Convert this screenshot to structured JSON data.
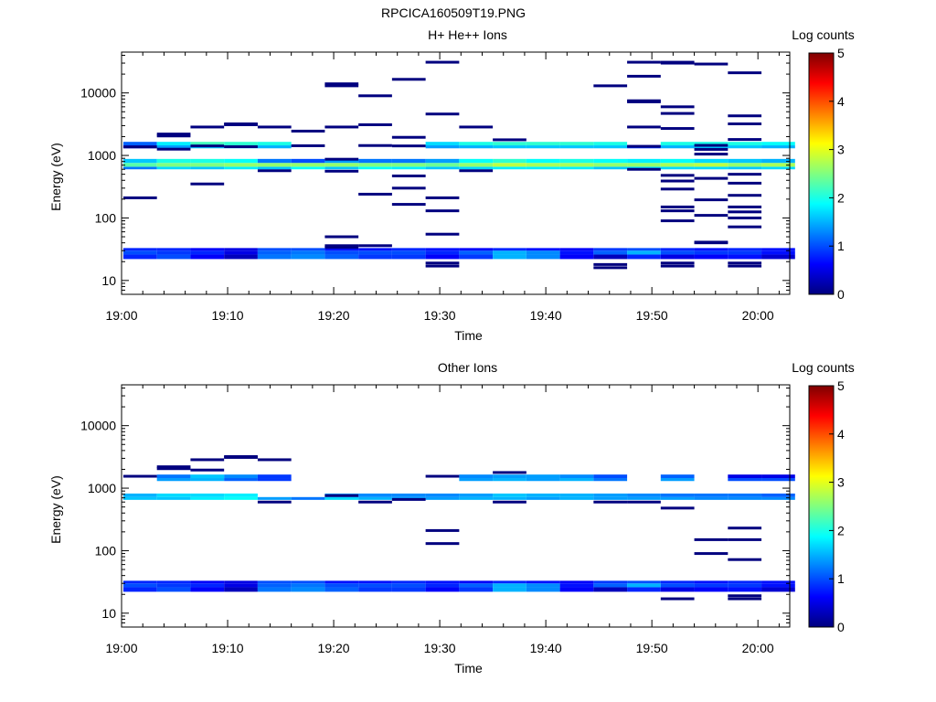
{
  "figure": {
    "main_title": "RPCICA160509T19.PNG"
  },
  "colormap": [
    "#00007f",
    "#0000ff",
    "#0080ff",
    "#00ffff",
    "#80ff80",
    "#ffff00",
    "#ff8000",
    "#ff0000",
    "#7f0000"
  ],
  "chart_data": [
    {
      "type": "heatmap",
      "title": "H+ He++ Ions",
      "xlabel": "Time",
      "ylabel": "Energy (eV)",
      "yscale": "log",
      "ylim": [
        6,
        45000
      ],
      "xlim_minutes": [
        0,
        63
      ],
      "x_ticks": [
        "19:00",
        "19:10",
        "19:20",
        "19:30",
        "19:40",
        "19:50",
        "20:00"
      ],
      "x_tick_minutes": [
        0,
        10,
        20,
        30,
        40,
        50,
        60
      ],
      "y_ticks": [
        "10",
        "100",
        "1000",
        "10000"
      ],
      "y_tick_values": [
        10,
        100,
        1000,
        10000
      ],
      "colorbar": {
        "label": "Log counts",
        "min": 0,
        "max": 5,
        "ticks": [
          "0",
          "1",
          "2",
          "3",
          "4",
          "5"
        ]
      },
      "time_columns": [
        [
          "19:00:10",
          "19:03:20"
        ],
        [
          "19:03:20",
          "19:06:30"
        ],
        [
          "19:06:30",
          "19:09:40"
        ],
        [
          "19:09:40",
          "19:12:50"
        ],
        [
          "19:12:50",
          "19:16:00"
        ],
        [
          "19:16:00",
          "19:19:10"
        ],
        [
          "19:19:10",
          "19:22:20"
        ],
        [
          "19:22:20",
          "19:25:30"
        ],
        [
          "19:25:30",
          "19:28:40"
        ],
        [
          "19:28:40",
          "19:31:50"
        ],
        [
          "19:31:50",
          "19:35:00"
        ],
        [
          "19:35:00",
          "19:38:10"
        ],
        [
          "19:38:10",
          "19:41:20"
        ],
        [
          "19:41:20",
          "19:44:30"
        ],
        [
          "19:44:30",
          "19:47:40"
        ],
        [
          "19:47:40",
          "19:50:50"
        ],
        [
          "19:50:50",
          "19:54:00"
        ],
        [
          "19:54:00",
          "19:57:10"
        ],
        [
          "19:57:10",
          "20:00:20"
        ],
        [
          "20:00:20",
          "20:03:30"
        ]
      ],
      "bands": [
        {
          "name": "main 600-650 eV",
          "e_low": 600,
          "e_high": 660,
          "values": [
            1.2,
            1.7,
            1.6,
            1.8,
            1.6,
            1.9,
            1.6,
            1.9,
            1.8,
            1.6,
            1.7,
            1.8,
            1.8,
            1.8,
            1.6,
            1.7,
            1.7,
            1.7,
            1.6,
            1.7
          ]
        },
        {
          "name": "main 660-760 eV",
          "e_low": 660,
          "e_high": 760,
          "values": [
            2.3,
            2.5,
            2.5,
            2.6,
            2.6,
            2.6,
            2.6,
            2.5,
            2.5,
            2.4,
            2.6,
            2.8,
            2.7,
            2.7,
            2.6,
            2.6,
            2.7,
            2.8,
            2.6,
            2.7
          ]
        },
        {
          "name": "main 760-880 eV",
          "e_low": 760,
          "e_high": 880,
          "values": [
            1.6,
            2.0,
            2.0,
            1.9,
            1.2,
            1.0,
            1.4,
            1.2,
            1.2,
            1.4,
            1.9,
            2.1,
            1.9,
            2.0,
            1.9,
            1.8,
            1.9,
            1.7,
            1.6,
            1.5
          ]
        },
        {
          "name": "1300-1450 eV",
          "e_low": 1300,
          "e_high": 1450,
          "values": [
            0.6,
            1.4,
            1.6,
            1.5,
            1.5,
            null,
            null,
            null,
            null,
            1.4,
            1.5,
            1.6,
            1.6,
            1.6,
            1.6,
            0.9,
            1.5,
            1.6,
            1.6,
            1.5
          ]
        },
        {
          "name": "1450-1650 eV",
          "e_low": 1450,
          "e_high": 1650,
          "values": [
            1.1,
            1.8,
            2.2,
            2.1,
            2.0,
            null,
            null,
            null,
            null,
            1.7,
            2.0,
            2.1,
            2.1,
            2.1,
            2.0,
            null,
            2.0,
            2.0,
            2.0,
            1.9
          ]
        },
        {
          "name": "low 22-26 eV",
          "e_low": 22,
          "e_high": 26,
          "values": [
            0.8,
            1.0,
            0.6,
            0.3,
            1.2,
            1.3,
            1.1,
            0.9,
            0.9,
            0.6,
            0.9,
            1.5,
            1.3,
            0.6,
            0.3,
            0.8,
            0.5,
            0.6,
            0.7,
            0.4
          ]
        },
        {
          "name": "low 26-30 eV",
          "e_low": 26,
          "e_high": 30,
          "values": [
            1.0,
            0.9,
            0.8,
            0.5,
            1.1,
            1.2,
            1.0,
            1.0,
            1.0,
            0.8,
            1.1,
            1.5,
            1.3,
            0.7,
            1.1,
            1.5,
            1.0,
            0.9,
            0.9,
            0.7
          ]
        },
        {
          "name": "low 30-33 eV",
          "e_low": 30,
          "e_high": 33,
          "values": [
            0.8,
            0.8,
            0.6,
            0.5,
            1.0,
            1.0,
            0.7,
            0.7,
            0.8,
            0.7,
            0.6,
            0.8,
            0.7,
            0.6,
            0.9,
            1.0,
            0.8,
            0.7,
            0.8,
            0.7
          ]
        }
      ],
      "sparse_points": [
        [
          0,
          210
        ],
        [
          0,
          1370
        ],
        [
          1,
          1260
        ],
        [
          1,
          2050
        ],
        [
          1,
          2200
        ],
        [
          2,
          350
        ],
        [
          2,
          2850
        ],
        [
          2,
          1420
        ],
        [
          3,
          3100
        ],
        [
          3,
          3200
        ],
        [
          3,
          1380
        ],
        [
          4,
          2850
        ],
        [
          4,
          570
        ],
        [
          5,
          1430
        ],
        [
          5,
          2450
        ],
        [
          6,
          870
        ],
        [
          6,
          13000
        ],
        [
          6,
          14000
        ],
        [
          6,
          2850
        ],
        [
          6,
          50
        ],
        [
          6,
          34
        ],
        [
          6,
          36
        ],
        [
          6,
          560
        ],
        [
          7,
          3100
        ],
        [
          7,
          9000
        ],
        [
          7,
          240
        ],
        [
          7,
          1440
        ],
        [
          7,
          36
        ],
        [
          8,
          470
        ],
        [
          8,
          300
        ],
        [
          8,
          165
        ],
        [
          8,
          16500
        ],
        [
          8,
          1950
        ],
        [
          8,
          1420
        ],
        [
          9,
          31000
        ],
        [
          9,
          4600
        ],
        [
          9,
          210
        ],
        [
          9,
          130
        ],
        [
          9,
          55
        ],
        [
          9,
          17
        ],
        [
          9,
          19
        ],
        [
          10,
          2850
        ],
        [
          10,
          570
        ],
        [
          11,
          1780
        ],
        [
          14,
          13000
        ],
        [
          14,
          16
        ],
        [
          14,
          18
        ],
        [
          15,
          31000
        ],
        [
          15,
          18500
        ],
        [
          15,
          7500
        ],
        [
          15,
          7200
        ],
        [
          15,
          2850
        ],
        [
          15,
          1400
        ],
        [
          15,
          600
        ],
        [
          16,
          31000
        ],
        [
          16,
          30000
        ],
        [
          16,
          6000
        ],
        [
          16,
          4700
        ],
        [
          16,
          2700
        ],
        [
          16,
          480
        ],
        [
          16,
          390
        ],
        [
          16,
          290
        ],
        [
          16,
          150
        ],
        [
          16,
          130
        ],
        [
          16,
          90
        ],
        [
          16,
          17
        ],
        [
          16,
          19
        ],
        [
          17,
          29000
        ],
        [
          17,
          1450
        ],
        [
          17,
          1250
        ],
        [
          17,
          1050
        ],
        [
          17,
          430
        ],
        [
          17,
          195
        ],
        [
          17,
          110
        ],
        [
          17,
          41
        ],
        [
          17,
          40
        ],
        [
          18,
          21000
        ],
        [
          18,
          4300
        ],
        [
          18,
          3200
        ],
        [
          18,
          1800
        ],
        [
          18,
          500
        ],
        [
          18,
          360
        ],
        [
          18,
          230
        ],
        [
          18,
          150
        ],
        [
          18,
          125
        ],
        [
          18,
          100
        ],
        [
          18,
          72
        ],
        [
          18,
          17
        ],
        [
          18,
          19
        ]
      ]
    },
    {
      "type": "heatmap",
      "title": "Other Ions",
      "xlabel": "Time",
      "ylabel": "Energy (eV)",
      "yscale": "log",
      "ylim": [
        6,
        45000
      ],
      "xlim_minutes": [
        0,
        63
      ],
      "x_ticks": [
        "19:00",
        "19:10",
        "19:20",
        "19:30",
        "19:40",
        "19:50",
        "20:00"
      ],
      "x_tick_minutes": [
        0,
        10,
        20,
        30,
        40,
        50,
        60
      ],
      "y_ticks": [
        "10",
        "100",
        "1000",
        "10000"
      ],
      "y_tick_values": [
        10,
        100,
        1000,
        10000
      ],
      "colorbar": {
        "label": "Log counts",
        "min": 0,
        "max": 5,
        "ticks": [
          "0",
          "1",
          "2",
          "3",
          "4",
          "5"
        ]
      },
      "time_columns": [
        [
          "19:00:10",
          "19:03:20"
        ],
        [
          "19:03:20",
          "19:06:30"
        ],
        [
          "19:06:30",
          "19:09:40"
        ],
        [
          "19:09:40",
          "19:12:50"
        ],
        [
          "19:12:50",
          "19:16:00"
        ],
        [
          "19:16:00",
          "19:19:10"
        ],
        [
          "19:19:10",
          "19:22:20"
        ],
        [
          "19:22:20",
          "19:25:30"
        ],
        [
          "19:25:30",
          "19:28:40"
        ],
        [
          "19:28:40",
          "19:31:50"
        ],
        [
          "19:31:50",
          "19:35:00"
        ],
        [
          "19:35:00",
          "19:38:10"
        ],
        [
          "19:38:10",
          "19:41:20"
        ],
        [
          "19:41:20",
          "19:44:30"
        ],
        [
          "19:44:30",
          "19:47:40"
        ],
        [
          "19:47:40",
          "19:50:50"
        ],
        [
          "19:50:50",
          "19:54:00"
        ],
        [
          "19:54:00",
          "19:57:10"
        ],
        [
          "19:57:10",
          "20:00:20"
        ],
        [
          "20:00:20",
          "20:03:30"
        ]
      ],
      "bands": [
        {
          "name": "main 650-720 eV",
          "e_low": 650,
          "e_high": 720,
          "values": [
            1.6,
            1.6,
            1.8,
            1.9,
            1.4,
            1.2,
            1.7,
            1.5,
            1.4,
            1.4,
            1.5,
            1.5,
            1.4,
            1.5,
            1.4,
            1.4,
            1.4,
            1.3,
            1.3,
            1.3
          ]
        },
        {
          "name": "main 720-820 eV",
          "e_low": 720,
          "e_high": 820,
          "values": [
            1.5,
            1.7,
            1.7,
            1.8,
            null,
            null,
            1.4,
            1.3,
            1.3,
            1.3,
            1.4,
            1.6,
            1.5,
            1.5,
            1.4,
            1.3,
            1.2,
            1.2,
            1.2,
            1.1
          ]
        },
        {
          "name": "1300-1450 eV",
          "e_low": 1300,
          "e_high": 1450,
          "values": [
            null,
            1.4,
            1.5,
            1.1,
            0.9,
            null,
            null,
            null,
            null,
            null,
            1.4,
            1.5,
            1.4,
            1.5,
            1.2,
            null,
            1.4,
            null,
            1.0,
            1.0
          ]
        },
        {
          "name": "1450-1650 eV",
          "e_low": 1450,
          "e_high": 1650,
          "values": [
            null,
            1.2,
            1.6,
            1.3,
            0.9,
            null,
            null,
            null,
            null,
            null,
            1.3,
            1.4,
            1.4,
            1.3,
            1.0,
            null,
            1.1,
            null,
            0.5,
            0.5
          ]
        },
        {
          "name": "low 22-26 eV",
          "e_low": 22,
          "e_high": 26,
          "values": [
            0.8,
            1.0,
            0.6,
            0.3,
            1.2,
            1.3,
            1.1,
            0.9,
            0.9,
            0.6,
            0.9,
            1.5,
            1.3,
            0.6,
            0.3,
            0.8,
            0.5,
            0.6,
            0.7,
            0.4
          ]
        },
        {
          "name": "low 26-30 eV",
          "e_low": 26,
          "e_high": 30,
          "values": [
            1.0,
            0.9,
            0.8,
            0.5,
            1.1,
            1.2,
            1.0,
            1.0,
            1.0,
            0.8,
            1.1,
            1.5,
            1.3,
            0.7,
            1.1,
            1.5,
            1.0,
            0.9,
            0.9,
            0.7
          ]
        },
        {
          "name": "low 30-33 eV",
          "e_low": 30,
          "e_high": 33,
          "values": [
            0.8,
            0.8,
            0.6,
            0.5,
            1.0,
            1.0,
            0.7,
            0.7,
            0.8,
            0.7,
            0.6,
            0.8,
            0.7,
            0.6,
            0.9,
            1.0,
            0.8,
            0.7,
            0.8,
            0.7
          ]
        }
      ],
      "sparse_points": [
        [
          0,
          1550
        ],
        [
          1,
          2050
        ],
        [
          1,
          2200
        ],
        [
          2,
          2850
        ],
        [
          2,
          1950
        ],
        [
          3,
          3100
        ],
        [
          3,
          3200
        ],
        [
          4,
          2850
        ],
        [
          4,
          600
        ],
        [
          6,
          760
        ],
        [
          7,
          600
        ],
        [
          8,
          660
        ],
        [
          9,
          1550
        ],
        [
          9,
          210
        ],
        [
          9,
          130
        ],
        [
          11,
          1780
        ],
        [
          11,
          600
        ],
        [
          14,
          600
        ],
        [
          15,
          600
        ],
        [
          16,
          480
        ],
        [
          17,
          150
        ],
        [
          17,
          90
        ],
        [
          18,
          230
        ],
        [
          18,
          150
        ],
        [
          18,
          72
        ],
        [
          18,
          17
        ],
        [
          18,
          19
        ],
        [
          16,
          17
        ]
      ]
    }
  ]
}
